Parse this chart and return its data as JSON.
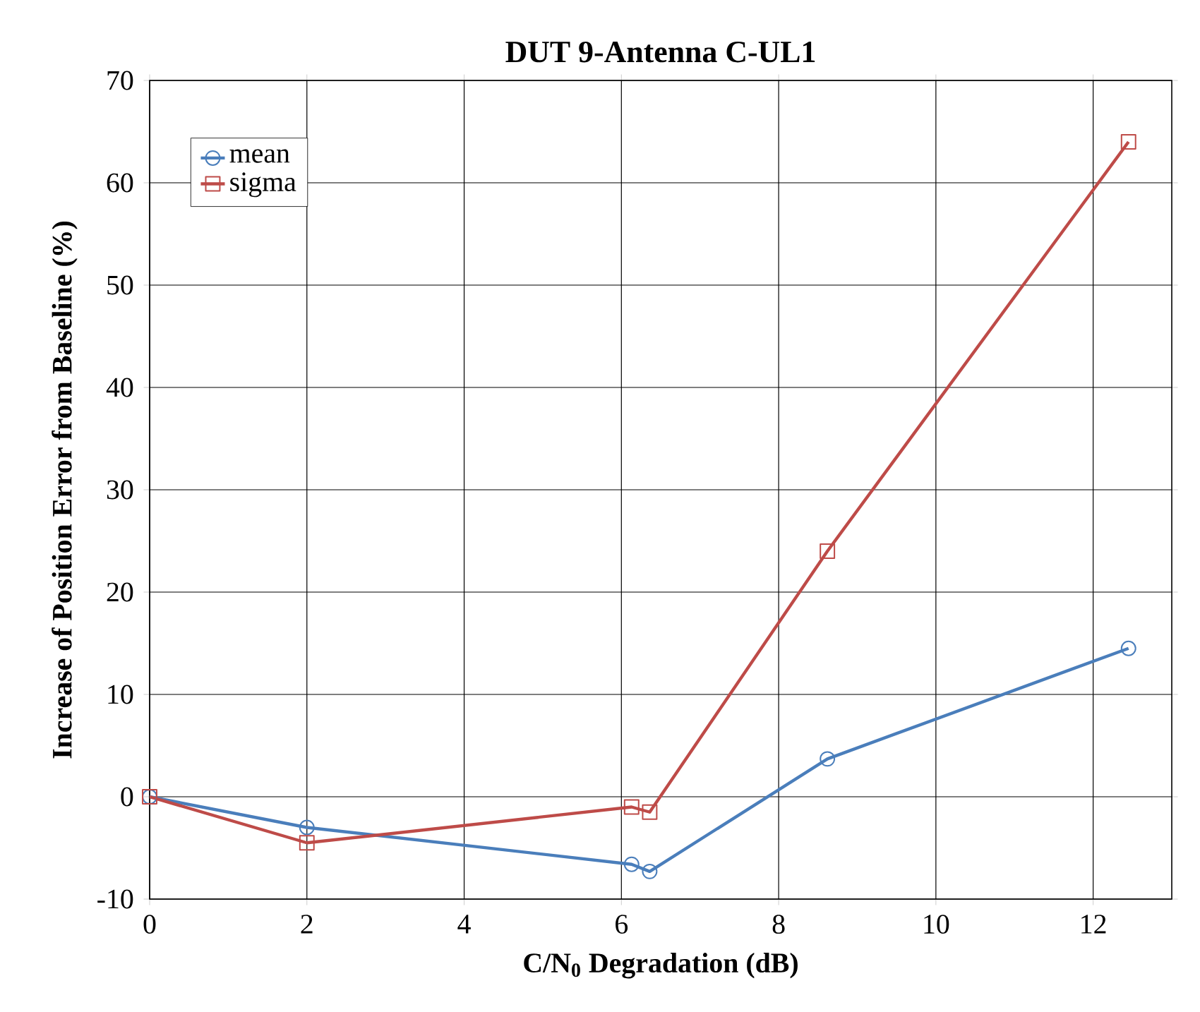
{
  "chart_data": {
    "type": "line",
    "title": "DUT 9-Antenna C-UL1",
    "xlabel": "C/N$_{0}$ Degradation (dB)",
    "ylabel": "Increase of Position Error from Baseline (%)",
    "x": [
      0,
      2,
      6.13,
      6.36,
      8.62,
      12.45
    ],
    "series": [
      {
        "name": "mean",
        "color": "#4a7ebb",
        "marker": "circle",
        "values": [
          0,
          -3.0,
          -6.6,
          -7.3,
          3.7,
          14.5
        ]
      },
      {
        "name": "sigma",
        "color": "#be4b48",
        "marker": "square",
        "values": [
          0,
          -4.5,
          -1.0,
          -1.5,
          24.0,
          64.0
        ]
      }
    ],
    "xlim": [
      0,
      13
    ],
    "ylim": [
      -10,
      70
    ],
    "xticks": [
      0,
      2,
      4,
      6,
      8,
      10,
      12
    ],
    "yticks": [
      -10,
      0,
      10,
      20,
      30,
      40,
      50,
      60,
      70
    ],
    "grid": true,
    "legend": "top left",
    "line_style": "solid"
  }
}
